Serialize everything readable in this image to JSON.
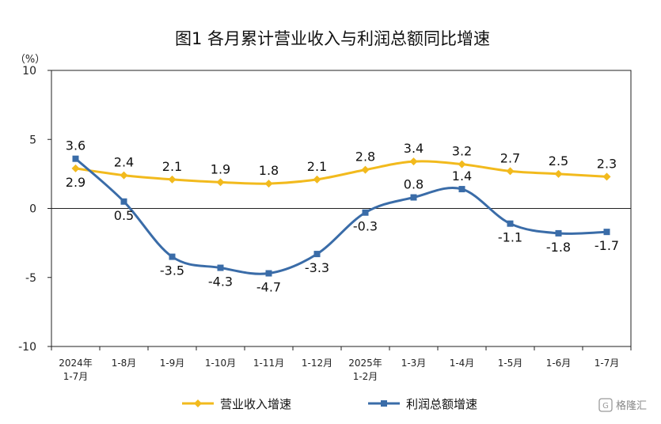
{
  "chart_data": {
    "type": "line",
    "title": "图1  各月累计营业收入与利润总额同比增速",
    "unit": "（%）",
    "categories": [
      [
        "2024年",
        "1-7月"
      ],
      [
        "1-8月"
      ],
      [
        "1-9月"
      ],
      [
        "1-10月"
      ],
      [
        "1-11月"
      ],
      [
        "1-12月"
      ],
      [
        "2025年",
        "1-2月"
      ],
      [
        "1-3月"
      ],
      [
        "1-4月"
      ],
      [
        "1-5月"
      ],
      [
        "1-6月"
      ],
      [
        "1-7月"
      ]
    ],
    "series": [
      {
        "name": "营业收入增速",
        "color": "#F2BA1D",
        "marker": "diamond",
        "values": [
          2.9,
          2.4,
          2.1,
          1.9,
          1.8,
          2.1,
          2.8,
          3.4,
          3.2,
          2.7,
          2.5,
          2.3
        ],
        "labels": [
          "2.9",
          "2.4",
          "2.1",
          "1.9",
          "1.8",
          "2.1",
          "2.8",
          "3.4",
          "3.2",
          "2.7",
          "2.5",
          "2.3"
        ],
        "label_position": [
          "below",
          "above",
          "above",
          "above",
          "above",
          "above",
          "above",
          "above",
          "above",
          "above",
          "above",
          "above"
        ]
      },
      {
        "name": "利润总额增速",
        "color": "#3A6CA8",
        "marker": "square",
        "values": [
          3.6,
          0.5,
          -3.5,
          -4.3,
          -4.7,
          -3.3,
          -0.3,
          0.8,
          1.4,
          -1.1,
          -1.8,
          -1.7
        ],
        "labels": [
          "3.6",
          "0.5",
          "-3.5",
          "-4.3",
          "-4.7",
          "-3.3",
          "-0.3",
          "0.8",
          "1.4",
          "-1.1",
          "-1.8",
          "-1.7"
        ],
        "label_position": [
          "above",
          "below",
          "below",
          "below",
          "below",
          "below",
          "below",
          "above",
          "above",
          "below",
          "below",
          "below"
        ]
      }
    ],
    "y_ticks": [
      "10",
      "5",
      "0",
      "-5",
      "-10"
    ],
    "y_tick_values": [
      10,
      5,
      0,
      -5,
      -10
    ],
    "ylim": [
      -10,
      10
    ],
    "grid": false,
    "legend_position": "bottom"
  },
  "watermark": "格隆汇"
}
